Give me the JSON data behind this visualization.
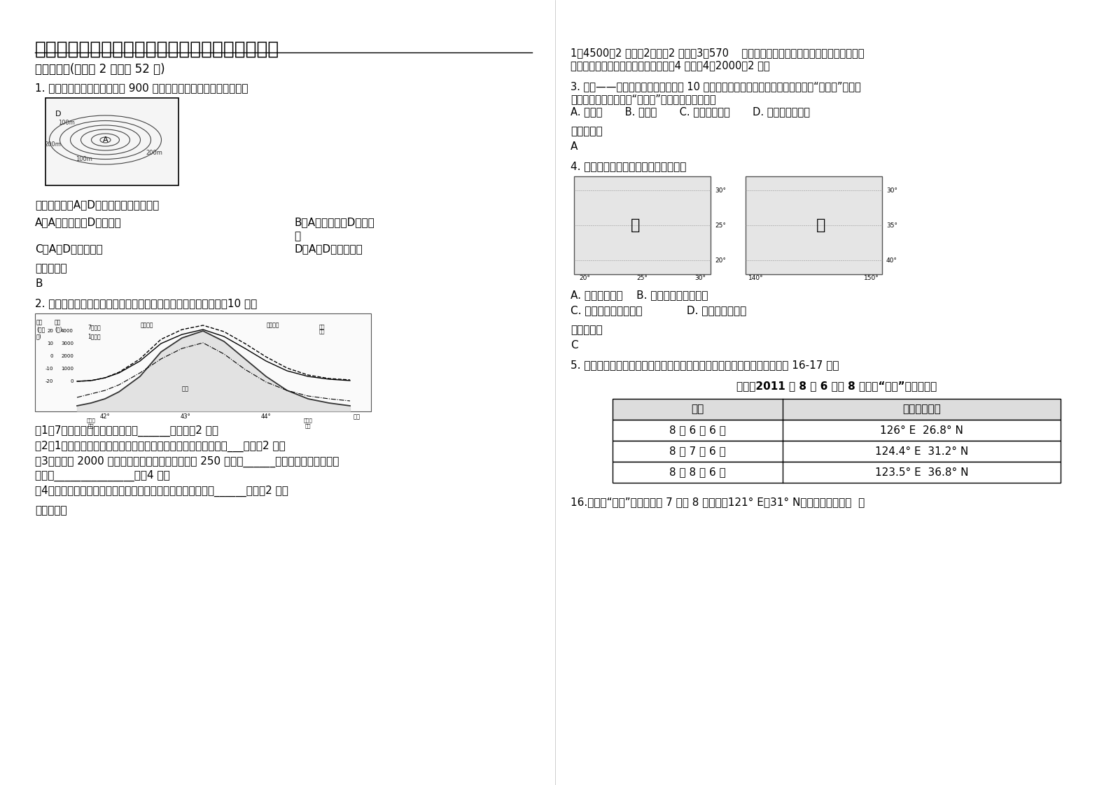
{
  "title": "江苏省连云港市文达中学高三地理联考试题含解析",
  "bg_color": "#ffffff",
  "section1": "一、选择题(每小题 2 分，共 52 分)",
  "q1": "1. 下图为北半球某区域近地面 900 百帕等压面空间高度分布图，回答",
  "q1_sub": "下列关于图中A、D两处风向说法正确的是",
  "q1_optA": "A．A吹偏北风，D吹偏南风",
  "q1_optB": "B．A吹偏南风，D吹偏北",
  "q1_optB2": "风",
  "q1_optC": "C．A、D均吹偏北风",
  "q1_optD": "D．A、D均吹偏南风",
  "ref": "参考答案：",
  "ref_b": "B",
  "q2": "2. 下图示意地形剖面及其对应的气候资料，读图回答下列问题。（10 分）",
  "q2_1": "（1）7月均温最小值出现在海拔约______米处。（2 分）",
  "q2_2": "（2）1月出现大面积逆温的两个地区中，地势起伏较大的位于天山___侧。（2 分）",
  "q2_3a": "（3）在海拔 2000 米处，南北两坡年降水量分别为 250 毫米、______毫米。造成这种差异的",
  "q2_3b": "原因是_______________。（4 分）",
  "q2_4": "（4）只考虑温度高低，则天山北麓牲畜过冬的牧场应位于海拔______米。（2 分）",
  "ref2": "参考答案：",
  "right_ans1": "1）4500（2 分）（2）北（2 分）（3）570    西风带来的水汽从山口进入盆地，并沿天山北",
  "right_ans2": "坡上升产生地形雨，故北坡降水多。（4 分）（4）2000（2 分）",
  "q3a": "3. 中国——东盟自由贸易区将在未来 10 年形成世界最大的自由贸易区。据此分析“新马泰”已成为",
  "q3b": "国际旅游热线之一，在“新马泰”看不到的旅游景观是",
  "q3_opts": "A. 荧育窟       B. 橡胶树       C. 热带雨林景观       D. 热带季雨林景观",
  "ref3": "参考答案：",
  "ref_a": "A",
  "q4": "4. 下图中甲、乙两地相似的地理特征有",
  "q4_optA": "A. 农业比较发达    B. 气候较周边地区凉爽",
  "q4_optC": "C. 河流径流季节变化大             D. 植被以森林为主",
  "ref4": "参考答案：",
  "ref_c": "C",
  "q5": "5. 热带风暴、台风和飓风都是发生在热带洋面上的强烈气旋，根据材料回答 16-17 题。",
  "tbl_title": "表一：2011 年 8 月 6 日至 8 日台风“梅花”的中心位置",
  "tbl_h1": "时间",
  "tbl_h2": "台风中心位置",
  "tbl_r1c1": "8 月 6 日 6 时",
  "tbl_r1c2": "126° E  26.8° N",
  "tbl_r2c1": "8 月 7 日 6 时",
  "tbl_r2c2": "124.4° E  31.2° N",
  "tbl_r3c1": "8 月 8 日 6 时",
  "tbl_r3c2": "123.5° E  36.8° N",
  "q16": "16.受台风“梅花”的影响，从 7 日至 8 日上海（121° E，31° N）的天气变化是（  ）"
}
